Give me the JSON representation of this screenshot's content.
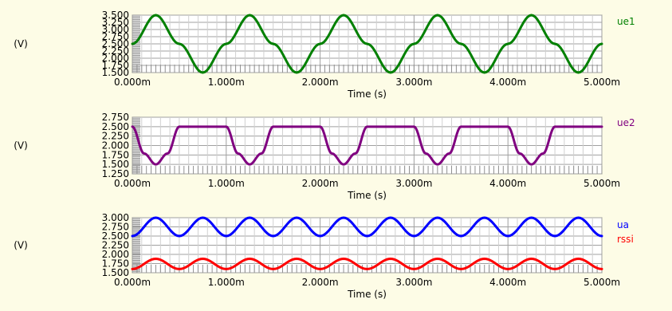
{
  "chart_data": [
    {
      "type": "line",
      "xlabel": "Time (s)",
      "ylabel": "(V)",
      "xlim": [
        0,
        5.0
      ],
      "x_unit": "ms",
      "x_ticks": [
        "0.000m",
        "1.000m",
        "2.000m",
        "3.000m",
        "4.000m",
        "5.000m"
      ],
      "ylim": [
        1.5,
        3.5
      ],
      "y_ticks": [
        "1.500",
        "1.750",
        "2.000",
        "2.250",
        "2.500",
        "2.750",
        "3.000",
        "3.250",
        "3.500"
      ],
      "series": [
        {
          "name": "ue1",
          "color": "#008000",
          "x": [
            0,
            0.25,
            0.5,
            0.75,
            1.0,
            1.25,
            1.5,
            1.75,
            2.0,
            2.25,
            2.5,
            2.75,
            3.0,
            3.25,
            3.5,
            3.75,
            4.0,
            4.25,
            4.5,
            4.75,
            5.0
          ],
          "values": [
            2.5,
            3.5,
            2.5,
            1.5,
            2.5,
            3.5,
            2.5,
            1.5,
            2.5,
            3.5,
            2.5,
            1.5,
            2.5,
            3.5,
            2.5,
            1.5,
            2.5,
            3.5,
            2.5,
            1.5,
            2.5
          ]
        }
      ]
    },
    {
      "type": "line",
      "xlabel": "Time (s)",
      "ylabel": "(V)",
      "xlim": [
        0,
        5.0
      ],
      "x_unit": "ms",
      "x_ticks": [
        "0.000m",
        "1.000m",
        "2.000m",
        "3.000m",
        "4.000m",
        "5.000m"
      ],
      "ylim": [
        1.25,
        2.75
      ],
      "y_ticks": [
        "1.250",
        "1.500",
        "1.750",
        "2.000",
        "2.250",
        "2.500",
        "2.750"
      ],
      "series": [
        {
          "name": "ue2",
          "color": "#800080",
          "x": [
            0,
            0.125,
            0.25,
            0.375,
            0.5,
            1.0,
            1.125,
            1.25,
            1.375,
            1.5,
            2.0,
            2.125,
            2.25,
            2.375,
            2.5,
            3.0,
            3.125,
            3.25,
            3.375,
            3.5,
            4.0,
            4.125,
            4.25,
            4.375,
            4.5,
            5.0
          ],
          "values": [
            2.5,
            1.79,
            1.5,
            1.79,
            2.5,
            2.5,
            1.79,
            1.5,
            1.79,
            2.5,
            2.5,
            1.79,
            1.5,
            1.79,
            2.5,
            2.5,
            1.79,
            1.5,
            1.79,
            2.5,
            2.5,
            1.79,
            1.5,
            1.79,
            2.5,
            2.5
          ]
        }
      ]
    },
    {
      "type": "line",
      "xlabel": "Time (s)",
      "ylabel": "(V)",
      "xlim": [
        0,
        5.0
      ],
      "x_unit": "ms",
      "x_ticks": [
        "0.000m",
        "1.000m",
        "2.000m",
        "3.000m",
        "4.000m",
        "5.000m"
      ],
      "ylim": [
        1.5,
        3.0
      ],
      "y_ticks": [
        "1.500",
        "1.750",
        "2.000",
        "2.250",
        "2.500",
        "2.750",
        "3.000"
      ],
      "series": [
        {
          "name": "ua",
          "color": "#0000ff",
          "x": [
            0,
            0.25,
            0.5,
            0.75,
            1.0,
            1.25,
            1.5,
            1.75,
            2.0,
            2.25,
            2.5,
            2.75,
            3.0,
            3.25,
            3.5,
            3.75,
            4.0,
            4.25,
            4.5,
            4.75,
            5.0
          ],
          "values": [
            2.5,
            3.0,
            2.5,
            3.0,
            2.5,
            3.0,
            2.5,
            3.0,
            2.5,
            3.0,
            2.5,
            3.0,
            2.5,
            3.0,
            2.5,
            3.0,
            2.5,
            3.0,
            2.5,
            3.0,
            2.5
          ]
        },
        {
          "name": "rssi",
          "color": "#ff0000",
          "x": [
            0,
            0.25,
            0.5,
            0.75,
            1.0,
            1.25,
            1.5,
            1.75,
            2.0,
            2.25,
            2.5,
            2.75,
            3.0,
            3.25,
            3.5,
            3.75,
            4.0,
            4.25,
            4.5,
            4.75,
            5.0
          ],
          "values": [
            1.6,
            1.88,
            1.6,
            1.88,
            1.6,
            1.88,
            1.6,
            1.88,
            1.6,
            1.88,
            1.6,
            1.88,
            1.6,
            1.88,
            1.6,
            1.88,
            1.6,
            1.88,
            1.6,
            1.88,
            1.6
          ]
        }
      ]
    }
  ]
}
